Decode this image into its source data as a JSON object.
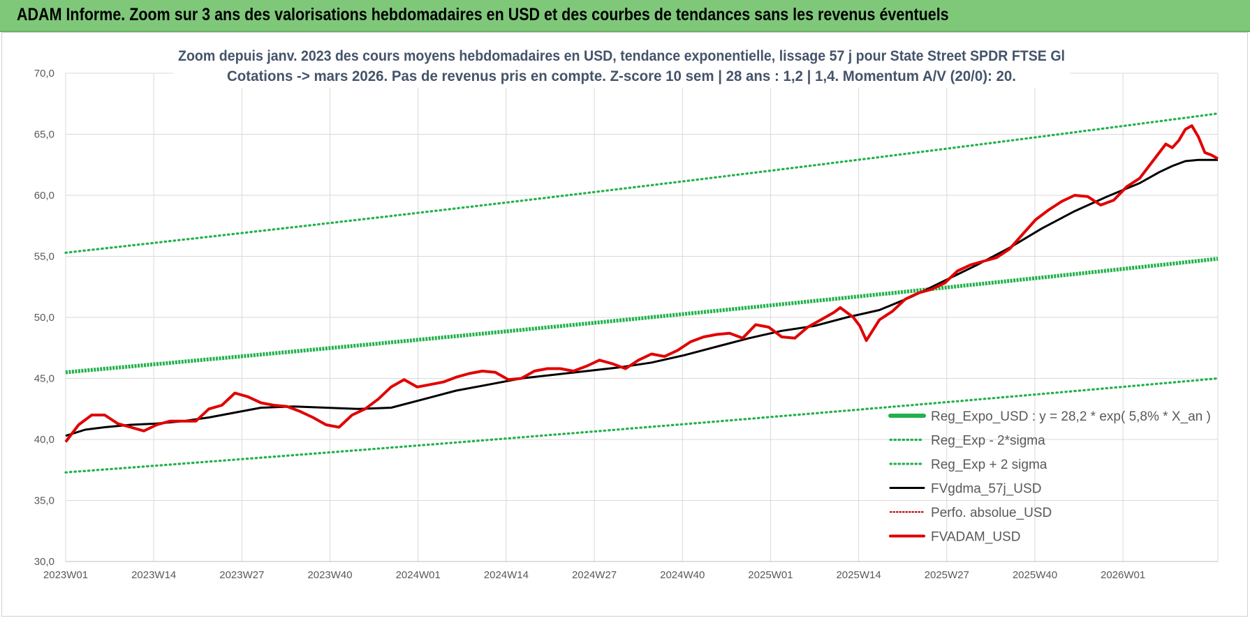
{
  "banner": {
    "title": "ADAM Informe. Zoom sur 3 ans des valorisations hebdomadaires en USD et des courbes de tendances sans les revenus éventuels"
  },
  "colors": {
    "banner_bg": "#7fc87a",
    "trend_green": "#22b14c",
    "fvgdma": "#000000",
    "fvadam": "#e00000",
    "perfo": "#c00000"
  },
  "chart_data": {
    "type": "line",
    "title_line1": "Zoom depuis janv. 2023 des cours moyens hebdomadaires en USD, tendance exponentielle, lissage 57 j pour State Street SPDR FTSE Gl",
    "title_line2": "Cotations -> mars 2026. Pas de revenus pris en compte. Z-score 10 sem | 28 ans : 1,2 | 1,4. Momentum A/V (20/0): 20.",
    "ylim": [
      30,
      70
    ],
    "y_ticks": [
      "30,0",
      "35,0",
      "40,0",
      "45,0",
      "50,0",
      "55,0",
      "60,0",
      "65,0",
      "70,0"
    ],
    "x_ticks": [
      "2023W01",
      "2023W14",
      "2023W27",
      "2023W40",
      "2024W01",
      "2024W14",
      "2024W27",
      "2024W40",
      "2025W01",
      "2025W14",
      "2025W27",
      "2025W40",
      "2026W01"
    ],
    "weeks_total": 170,
    "grid": true,
    "legend_position": "bottom-right",
    "legend": [
      "Reg_Expo_USD : y = 28,2 * exp( 5,8% *  X_an )",
      "Reg_Exp - 2*sigma",
      "Reg_Exp + 2 sigma",
      "FVgdma_57j_USD",
      "Perfo. absolue_USD",
      "FVADAM_USD"
    ],
    "series": {
      "reg_expo": {
        "start": 45.5,
        "end": 54.8
      },
      "reg_minus": {
        "start": 37.3,
        "end": 45.0
      },
      "reg_plus": {
        "start": 55.3,
        "end": 66.7
      },
      "fvgdma": [
        [
          0,
          40.3
        ],
        [
          3,
          40.8
        ],
        [
          6,
          41.0
        ],
        [
          10,
          41.2
        ],
        [
          14,
          41.3
        ],
        [
          18,
          41.5
        ],
        [
          22,
          41.8
        ],
        [
          26,
          42.2
        ],
        [
          30,
          42.6
        ],
        [
          35,
          42.7
        ],
        [
          40,
          42.6
        ],
        [
          45,
          42.5
        ],
        [
          50,
          42.6
        ],
        [
          55,
          43.3
        ],
        [
          60,
          44.0
        ],
        [
          65,
          44.5
        ],
        [
          70,
          45.0
        ],
        [
          75,
          45.3
        ],
        [
          80,
          45.6
        ],
        [
          85,
          45.9
        ],
        [
          90,
          46.3
        ],
        [
          95,
          46.9
        ],
        [
          100,
          47.6
        ],
        [
          105,
          48.3
        ],
        [
          110,
          48.9
        ],
        [
          115,
          49.3
        ],
        [
          120,
          50.0
        ],
        [
          125,
          50.6
        ],
        [
          130,
          51.7
        ],
        [
          135,
          53.0
        ],
        [
          140,
          54.3
        ],
        [
          145,
          55.7
        ],
        [
          150,
          57.3
        ],
        [
          155,
          58.7
        ],
        [
          160,
          59.9
        ],
        [
          165,
          61.0
        ],
        [
          168,
          61.9
        ],
        [
          170,
          62.4
        ],
        [
          172,
          62.8
        ],
        [
          174,
          62.9
        ],
        [
          177,
          62.9
        ]
      ],
      "fvadam": [
        [
          0,
          39.8
        ],
        [
          2,
          41.2
        ],
        [
          4,
          42.0
        ],
        [
          6,
          42.0
        ],
        [
          8,
          41.3
        ],
        [
          10,
          41.0
        ],
        [
          12,
          40.7
        ],
        [
          14,
          41.2
        ],
        [
          16,
          41.5
        ],
        [
          18,
          41.5
        ],
        [
          20,
          41.5
        ],
        [
          22,
          42.5
        ],
        [
          24,
          42.8
        ],
        [
          26,
          43.8
        ],
        [
          28,
          43.5
        ],
        [
          30,
          43.0
        ],
        [
          32,
          42.8
        ],
        [
          34,
          42.7
        ],
        [
          36,
          42.3
        ],
        [
          38,
          41.8
        ],
        [
          40,
          41.2
        ],
        [
          42,
          41.0
        ],
        [
          44,
          42.0
        ],
        [
          46,
          42.5
        ],
        [
          48,
          43.3
        ],
        [
          50,
          44.3
        ],
        [
          52,
          44.9
        ],
        [
          54,
          44.3
        ],
        [
          56,
          44.5
        ],
        [
          58,
          44.7
        ],
        [
          60,
          45.1
        ],
        [
          62,
          45.4
        ],
        [
          64,
          45.6
        ],
        [
          66,
          45.5
        ],
        [
          68,
          44.9
        ],
        [
          70,
          45.0
        ],
        [
          72,
          45.6
        ],
        [
          74,
          45.8
        ],
        [
          76,
          45.8
        ],
        [
          78,
          45.6
        ],
        [
          80,
          46.0
        ],
        [
          82,
          46.5
        ],
        [
          84,
          46.2
        ],
        [
          86,
          45.8
        ],
        [
          88,
          46.5
        ],
        [
          90,
          47.0
        ],
        [
          92,
          46.8
        ],
        [
          94,
          47.3
        ],
        [
          96,
          48.0
        ],
        [
          98,
          48.4
        ],
        [
          100,
          48.6
        ],
        [
          102,
          48.7
        ],
        [
          104,
          48.3
        ],
        [
          106,
          49.4
        ],
        [
          108,
          49.2
        ],
        [
          110,
          48.4
        ],
        [
          112,
          48.3
        ],
        [
          114,
          49.2
        ],
        [
          116,
          49.8
        ],
        [
          118,
          50.4
        ],
        [
          119,
          50.8
        ],
        [
          121,
          50.0
        ],
        [
          122,
          49.3
        ],
        [
          123,
          48.1
        ],
        [
          125,
          49.8
        ],
        [
          127,
          50.5
        ],
        [
          129,
          51.5
        ],
        [
          131,
          52.0
        ],
        [
          133,
          52.3
        ],
        [
          135,
          52.8
        ],
        [
          137,
          53.8
        ],
        [
          139,
          54.3
        ],
        [
          141,
          54.6
        ],
        [
          143,
          54.9
        ],
        [
          145,
          55.6
        ],
        [
          147,
          56.8
        ],
        [
          149,
          58.0
        ],
        [
          151,
          58.8
        ],
        [
          153,
          59.5
        ],
        [
          155,
          60.0
        ],
        [
          157,
          59.9
        ],
        [
          159,
          59.2
        ],
        [
          161,
          59.6
        ],
        [
          163,
          60.7
        ],
        [
          165,
          61.4
        ],
        [
          167,
          62.8
        ],
        [
          169,
          64.2
        ],
        [
          170,
          63.9
        ],
        [
          171,
          64.5
        ],
        [
          172,
          65.4
        ],
        [
          173,
          65.7
        ],
        [
          174,
          64.8
        ],
        [
          175,
          63.5
        ],
        [
          176,
          63.3
        ],
        [
          177,
          63.0
        ]
      ]
    }
  }
}
